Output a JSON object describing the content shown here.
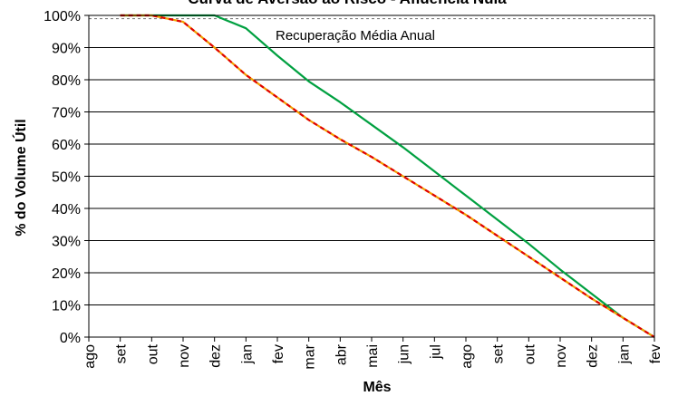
{
  "chart_data": {
    "type": "line",
    "title": "Curva de Aversão ao Risco - Afluência Nula",
    "xlabel": "Mês",
    "ylabel": "% do Volume Útil",
    "ylim": [
      0,
      100
    ],
    "yticks": [
      0,
      10,
      20,
      30,
      40,
      50,
      60,
      70,
      80,
      90,
      100
    ],
    "ytick_format": "%",
    "grid": true,
    "categories": [
      "ago",
      "set",
      "out",
      "nov",
      "dez",
      "jan",
      "fev",
      "mar",
      "abr",
      "mai",
      "jun",
      "jul",
      "ago",
      "set",
      "out",
      "nov",
      "dez",
      "jan",
      "fev"
    ],
    "series": [
      {
        "color": "#00a040",
        "style": "solid",
        "values": [
          null,
          100,
          100,
          100,
          100,
          96,
          87.5,
          79.5,
          73,
          66,
          59,
          51.5,
          44,
          36.5,
          29,
          21,
          13.5,
          6,
          0
        ]
      },
      {
        "color": "#f0a000",
        "style": "solid",
        "values": [
          null,
          100,
          100,
          98,
          90,
          81.5,
          74.5,
          67.5,
          61.5,
          56,
          50,
          44,
          38,
          31.5,
          25,
          18.5,
          12,
          6,
          0
        ]
      },
      {
        "color": "#e00000",
        "style": "dashed",
        "values": [
          null,
          100,
          100,
          98,
          90,
          81.5,
          74.5,
          67.5,
          61.5,
          56,
          50,
          44,
          38,
          31.5,
          25,
          18.5,
          12,
          6,
          0
        ]
      }
    ],
    "reference_line": {
      "label": "Recuperação Média Anual",
      "value": 99,
      "color": "#808080",
      "style": "dashed"
    }
  }
}
